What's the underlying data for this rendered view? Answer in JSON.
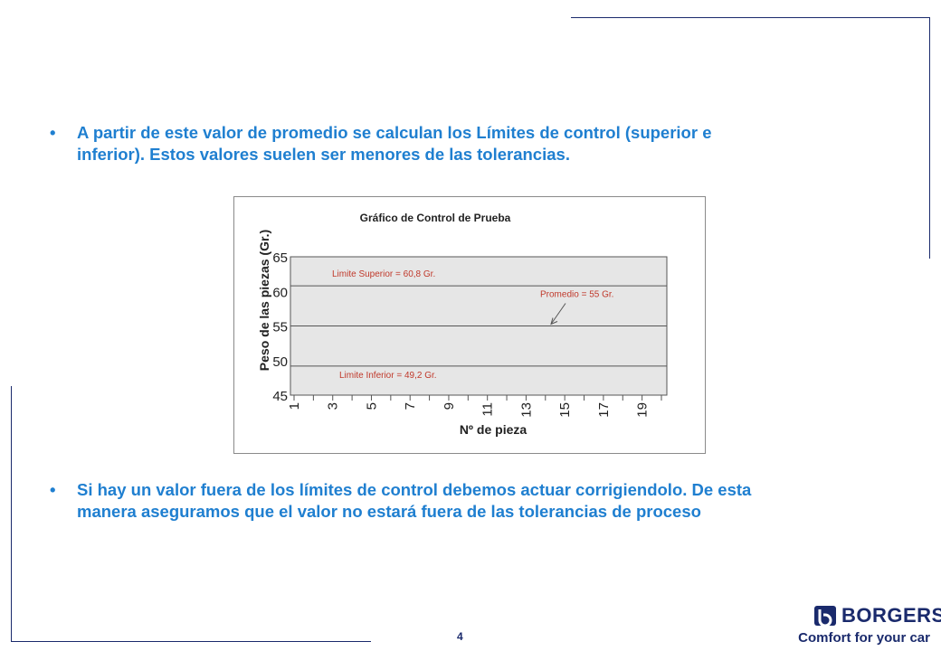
{
  "slide": {
    "bullets": [
      {
        "marker": "•",
        "line1": "A partir de este valor de promedio se calculan los Límites de control (superior e",
        "line2": "inferior). Estos valores suelen ser menores de las tolerancias."
      },
      {
        "marker": "•",
        "line1": "Si hay un valor fuera de los límites de control debemos actuar corrigiendolo. De esta",
        "line2": "manera aseguramos que el valor no estará fuera de las tolerancias de proceso"
      }
    ],
    "page_number": "4",
    "brand": "BORGERS",
    "tagline": "Comfort for your car",
    "colors": {
      "text_blue": "#1f7fd0",
      "navy": "#1a2a6c",
      "plot_bg": "#e6e6e6"
    }
  },
  "chart_data": {
    "type": "line",
    "title": "Gráfico de Control de Prueba",
    "xlabel": "Nº de pieza",
    "ylabel": "Peso de las piezas (Gr.)",
    "x_ticks": [
      "1",
      "3",
      "5",
      "7",
      "9",
      "11",
      "13",
      "15",
      "17",
      "19"
    ],
    "x_range": [
      1,
      20
    ],
    "ylim": [
      45,
      65
    ],
    "y_ticks": [
      45,
      50,
      55,
      60,
      65
    ],
    "lines": [
      {
        "label": "Limite Superior = 60,8 Gr.",
        "value": 60.8
      },
      {
        "label": "Promedio = 55 Gr.",
        "value": 55
      },
      {
        "label": "Limite Inferior = 49,2 Gr.",
        "value": 49.2
      }
    ],
    "grid": false
  }
}
